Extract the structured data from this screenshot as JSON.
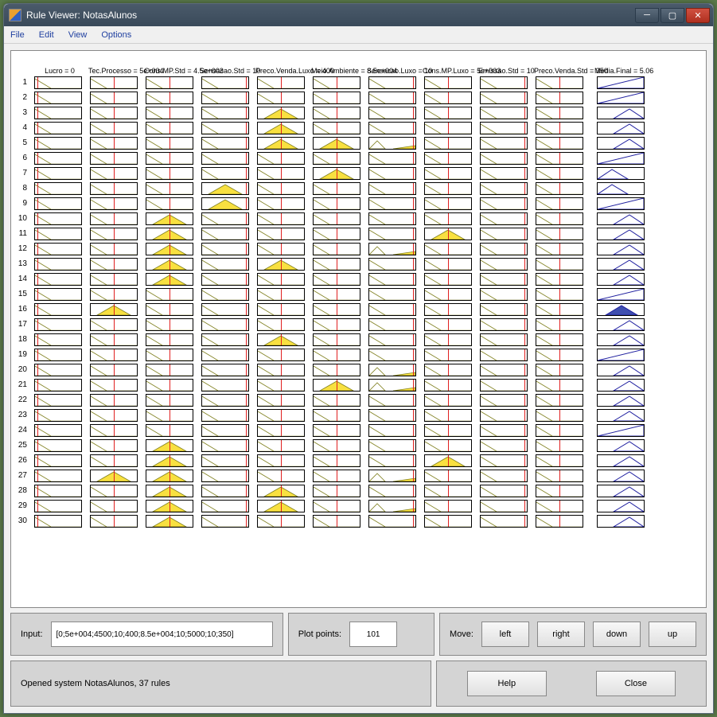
{
  "window": {
    "title": "Rule Viewer: NotasAlunos"
  },
  "menu": {
    "file": "File",
    "edit": "Edit",
    "view": "View",
    "options": "Options"
  },
  "columns": [
    {
      "label": "Lucro = 0",
      "vline": 0.05
    },
    {
      "label": "Tec.Processo = 5e+004",
      "vline": 0.5
    },
    {
      "label": "Cons.MP.Std = 4.5e+003",
      "vline": 0.5
    },
    {
      "label": "Sensacao.Std = 10",
      "vline": 0.95
    },
    {
      "label": "Preco.Venda.Luxo = 400",
      "vline": 0.5
    },
    {
      "label": "Meio.Ambiente = 8.5e+004",
      "vline": 0.5
    },
    {
      "label": "Sensacao.Luxo = 10",
      "vline": 0.95
    },
    {
      "label": "Cons.MP.Luxo = 5e+003",
      "vline": 0.5
    },
    {
      "label": "Emissao.Std = 10",
      "vline": 0.95
    },
    {
      "label": "Preco.Venda.Std = 350",
      "vline": 0.5
    },
    {
      "label": "Media.Final = 5.06",
      "vline": null
    }
  ],
  "row_count": 30,
  "cells_yellow": {
    "3": [
      4
    ],
    "4": [
      4
    ],
    "5": [
      4,
      5
    ],
    "7": [
      5
    ],
    "8": [
      3
    ],
    "9": [
      3
    ],
    "10": [
      2
    ],
    "11": [
      2,
      7
    ],
    "12": [
      2
    ],
    "13": [
      2,
      4
    ],
    "14": [
      2
    ],
    "16": [
      1
    ],
    "18": [
      4
    ],
    "21": [
      5
    ],
    "25": [
      2
    ],
    "26": [
      2,
      7
    ],
    "27": [
      1,
      2
    ],
    "28": [
      2,
      4
    ],
    "29": [
      2,
      4
    ],
    "30": [
      2
    ]
  },
  "cells_partial": {
    "5": [
      6
    ],
    "12": [
      6
    ],
    "20": [
      6
    ],
    "21": [
      6
    ],
    "27": [
      6
    ],
    "29": [
      6
    ]
  },
  "output_shapes": {
    "1": "rise",
    "2": "rise",
    "3": "tri-right",
    "4": "tri-right",
    "5": "tri-right",
    "6": "rise",
    "7": "tri-left",
    "8": "tri-left",
    "9": "rise",
    "10": "tri-right",
    "11": "tri-right",
    "12": "tri-right",
    "13": "tri-right",
    "14": "tri-right",
    "15": "rise",
    "16": "tri-mid-fill",
    "17": "tri-right",
    "18": "tri-right",
    "19": "rise",
    "20": "tri-right",
    "21": "tri-right",
    "22": "tri-right",
    "23": "tri-right",
    "24": "rise",
    "25": "tri-right",
    "26": "tri-right",
    "27": "tri-right",
    "28": "tri-right",
    "29": "tri-right",
    "30": "tri-right"
  },
  "input_panel": {
    "label": "Input:",
    "value": "[0;5e+004;4500;10;400;8.5e+004;10;5000;10;350]"
  },
  "plotpoints_panel": {
    "label": "Plot points:",
    "value": "101"
  },
  "move_panel": {
    "label": "Move:",
    "left": "left",
    "right": "right",
    "down": "down",
    "up": "up"
  },
  "status": "Opened system NotasAlunos, 37 rules",
  "buttons": {
    "help": "Help",
    "close": "Close"
  },
  "colors": {
    "mf_fill": "#f8e040",
    "mf_line": "#808020",
    "out_line": "#2020a0",
    "vline": "#e02020"
  }
}
